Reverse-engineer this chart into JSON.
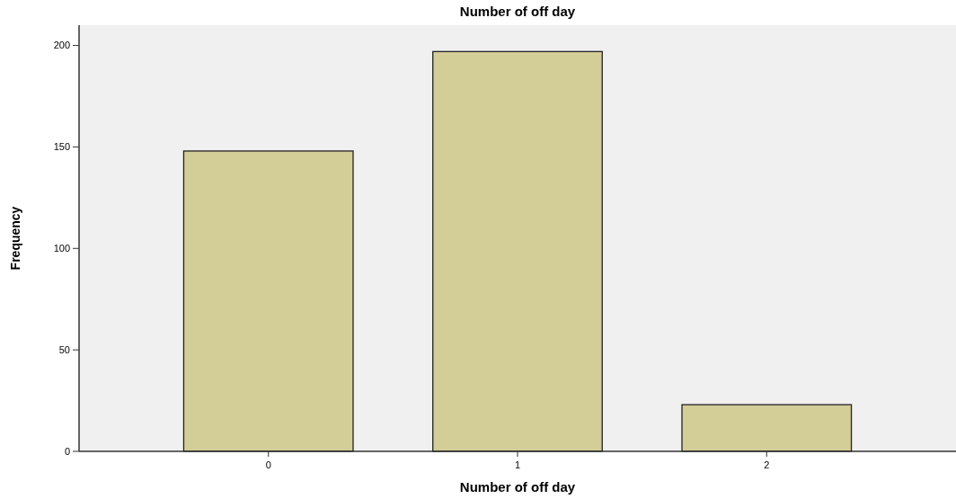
{
  "chart_data": {
    "type": "bar",
    "title": "Number of off day",
    "xlabel": "Number of off day",
    "ylabel": "Frequency",
    "categories": [
      "0",
      "1",
      "2"
    ],
    "values": [
      148,
      197,
      23
    ],
    "color": "#d3cd98",
    "ylim": [
      0,
      210
    ],
    "yticks": [
      0,
      50,
      100,
      150,
      200
    ],
    "grid": false
  }
}
